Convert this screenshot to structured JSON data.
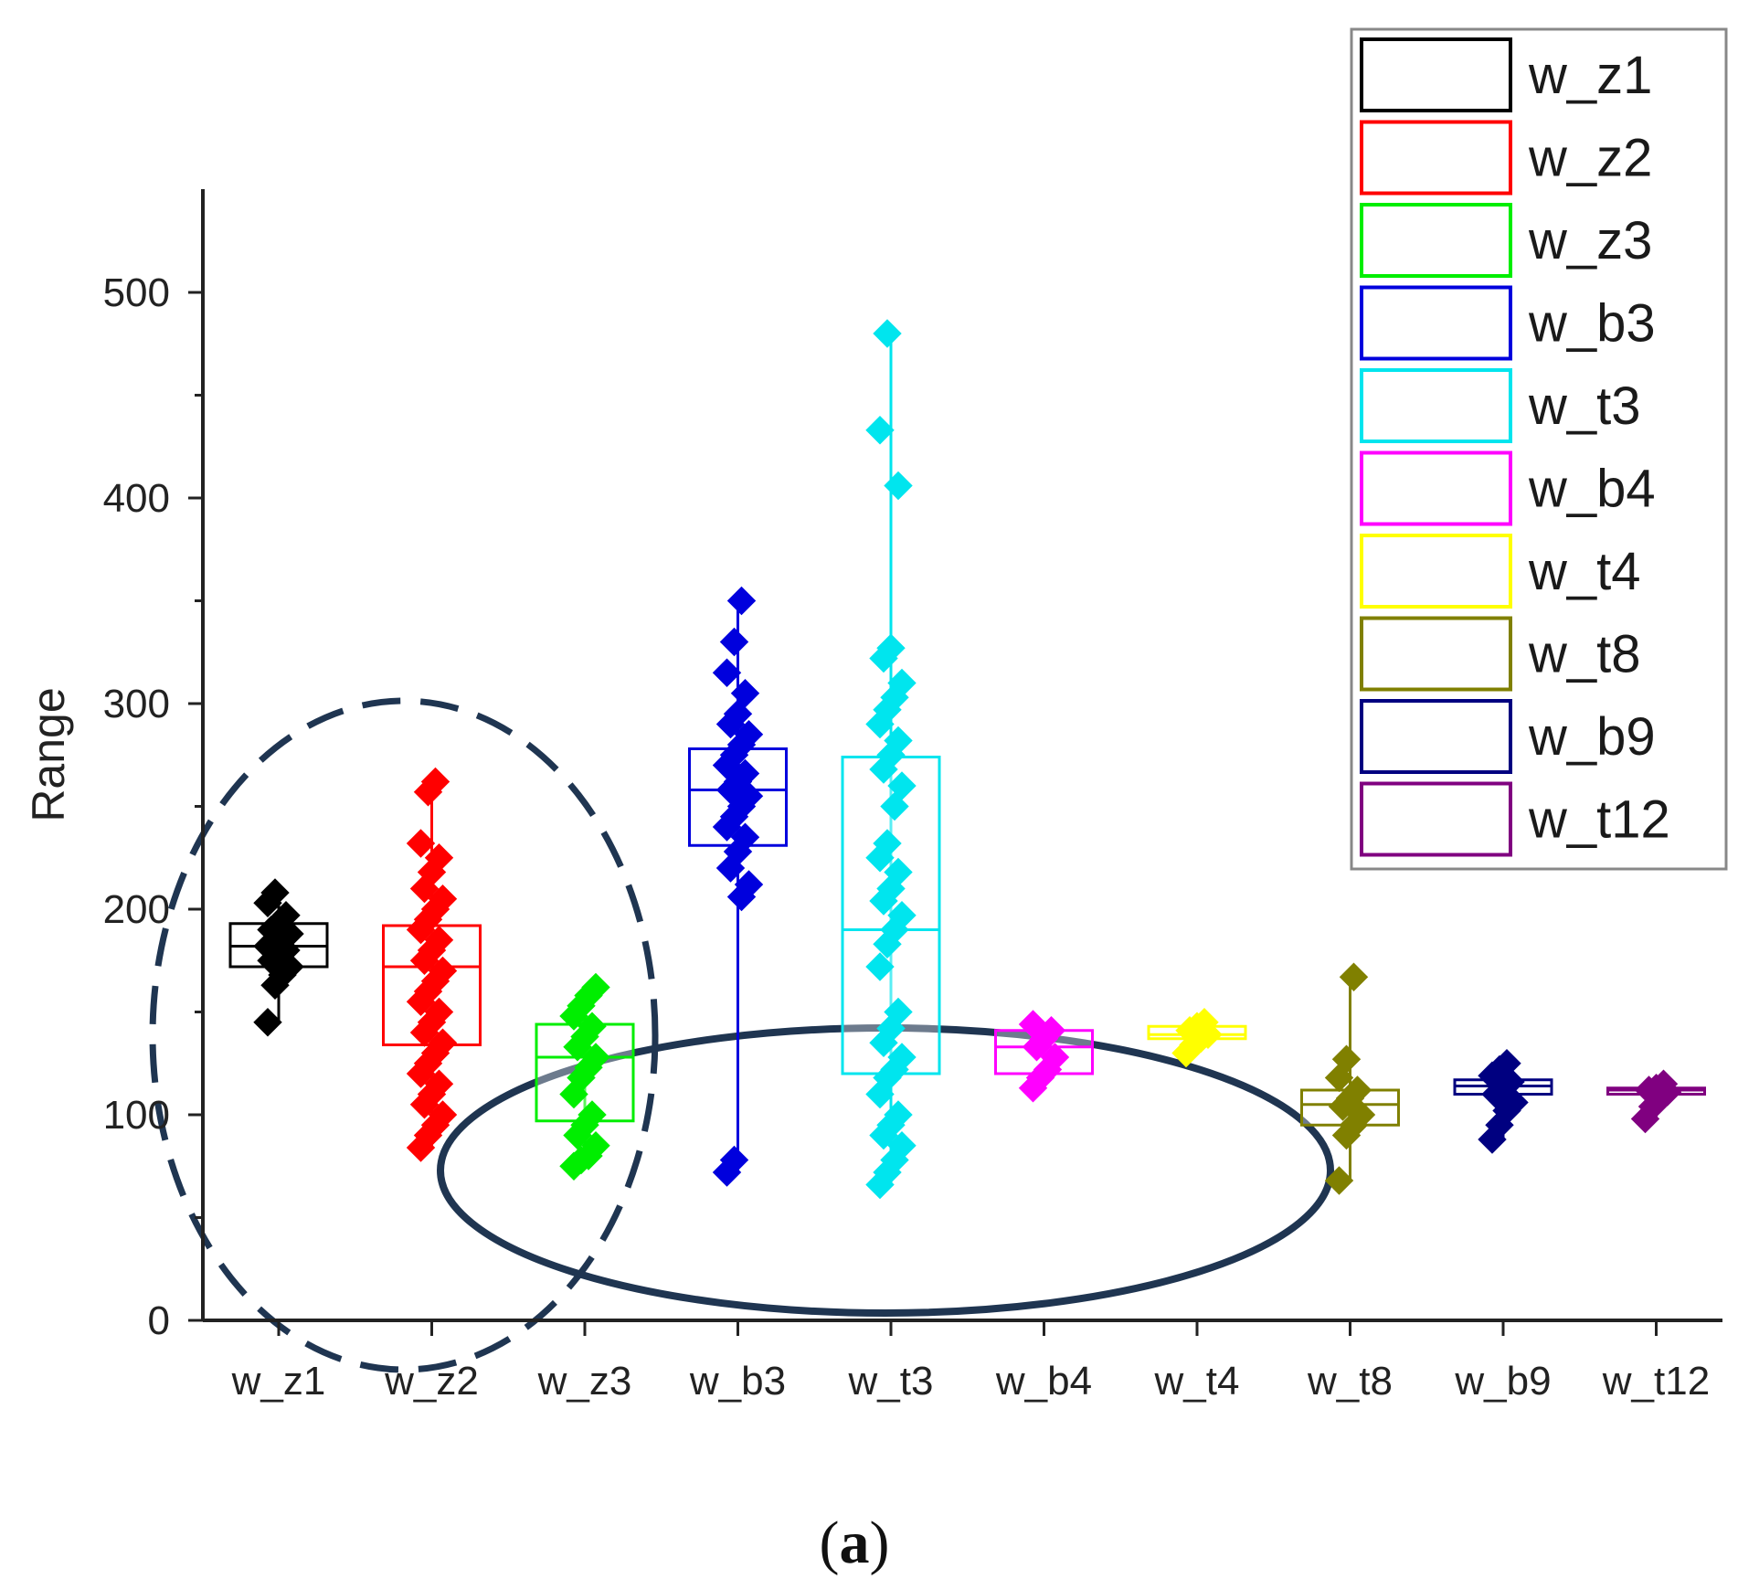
{
  "chart_data": {
    "type": "box",
    "title": "",
    "xlabel": "",
    "ylabel": "Range",
    "ylim": [
      0,
      550
    ],
    "yticks": [
      0,
      100,
      200,
      300,
      400,
      500
    ],
    "ytick_labels": [
      "0",
      "100",
      "200",
      "300",
      "400",
      "500"
    ],
    "categories": [
      "w_z1",
      "w_z2",
      "w_z3",
      "w_b3",
      "w_t3",
      "w_b4",
      "w_t4",
      "w_t8",
      "w_b9",
      "w_t12"
    ],
    "colors": [
      "#000000",
      "#ff0000",
      "#00ee00",
      "#0000dd",
      "#00e5ee",
      "#ff00ff",
      "#ffff00",
      "#808000",
      "#000080",
      "#800080"
    ],
    "legend": {
      "placement": "top-right",
      "entries": [
        "w_z1",
        "w_z2",
        "w_z3",
        "w_b3",
        "w_t3",
        "w_b4",
        "w_t4",
        "w_t8",
        "w_b9",
        "w_t12"
      ]
    },
    "series": [
      {
        "name": "w_z1",
        "q1": 172,
        "median": 182,
        "q3": 193,
        "points": [
          145,
          163,
          168,
          172,
          175,
          178,
          180,
          182,
          184,
          186,
          188,
          190,
          193,
          197,
          203,
          208
        ]
      },
      {
        "name": "w_z2",
        "q1": 134,
        "median": 172,
        "q3": 192,
        "points": [
          84,
          90,
          95,
          100,
          105,
          110,
          115,
          120,
          125,
          130,
          135,
          140,
          145,
          150,
          155,
          160,
          165,
          170,
          175,
          180,
          185,
          190,
          195,
          200,
          205,
          210,
          218,
          225,
          232,
          257,
          262
        ]
      },
      {
        "name": "w_z3",
        "q1": 97,
        "median": 128,
        "q3": 144,
        "points": [
          75,
          78,
          80,
          85,
          90,
          95,
          100,
          110,
          118,
          123,
          128,
          133,
          138,
          143,
          148,
          153,
          158,
          162
        ]
      },
      {
        "name": "w_b3",
        "q1": 231,
        "median": 258,
        "q3": 278,
        "points": [
          72,
          78,
          206,
          212,
          220,
          228,
          235,
          240,
          245,
          250,
          255,
          258,
          262,
          266,
          270,
          275,
          280,
          285,
          290,
          295,
          305,
          315,
          330,
          350
        ]
      },
      {
        "name": "w_t3",
        "q1": 120,
        "median": 190,
        "q3": 274,
        "points": [
          66,
          72,
          78,
          85,
          90,
          95,
          100,
          110,
          118,
          122,
          128,
          135,
          142,
          150,
          172,
          183,
          190,
          197,
          204,
          210,
          218,
          225,
          232,
          250,
          260,
          268,
          275,
          282,
          290,
          297,
          303,
          310,
          322,
          327,
          406,
          433,
          480
        ]
      },
      {
        "name": "w_b4",
        "q1": 120,
        "median": 133,
        "q3": 141,
        "points": [
          113,
          118,
          122,
          128,
          133,
          137,
          141,
          144
        ]
      },
      {
        "name": "w_t4",
        "q1": 137,
        "median": 139,
        "q3": 143,
        "points": [
          130,
          134,
          137,
          139,
          141,
          143,
          145
        ]
      },
      {
        "name": "w_t8",
        "q1": 95,
        "median": 105,
        "q3": 112,
        "points": [
          68,
          90,
          95,
          100,
          104,
          108,
          112,
          118,
          127,
          167
        ]
      },
      {
        "name": "w_b9",
        "q1": 110,
        "median": 114,
        "q3": 117,
        "points": [
          88,
          95,
          102,
          106,
          110,
          113,
          116,
          119,
          122,
          125
        ]
      },
      {
        "name": "w_t12",
        "q1": 110,
        "median": 112,
        "q3": 113,
        "points": [
          98,
          104,
          108,
          111,
          112,
          113,
          115
        ]
      }
    ],
    "annotations": [
      {
        "shape": "dashed-ellipse",
        "covers": [
          "w_z1",
          "w_z2",
          "w_z3"
        ]
      },
      {
        "shape": "solid-ellipse",
        "covers": [
          "w_b3",
          "w_t3",
          "w_b4",
          "w_t4",
          "w_t8"
        ]
      }
    ]
  },
  "caption": {
    "open": "(",
    "label": "a",
    "close": ")"
  }
}
